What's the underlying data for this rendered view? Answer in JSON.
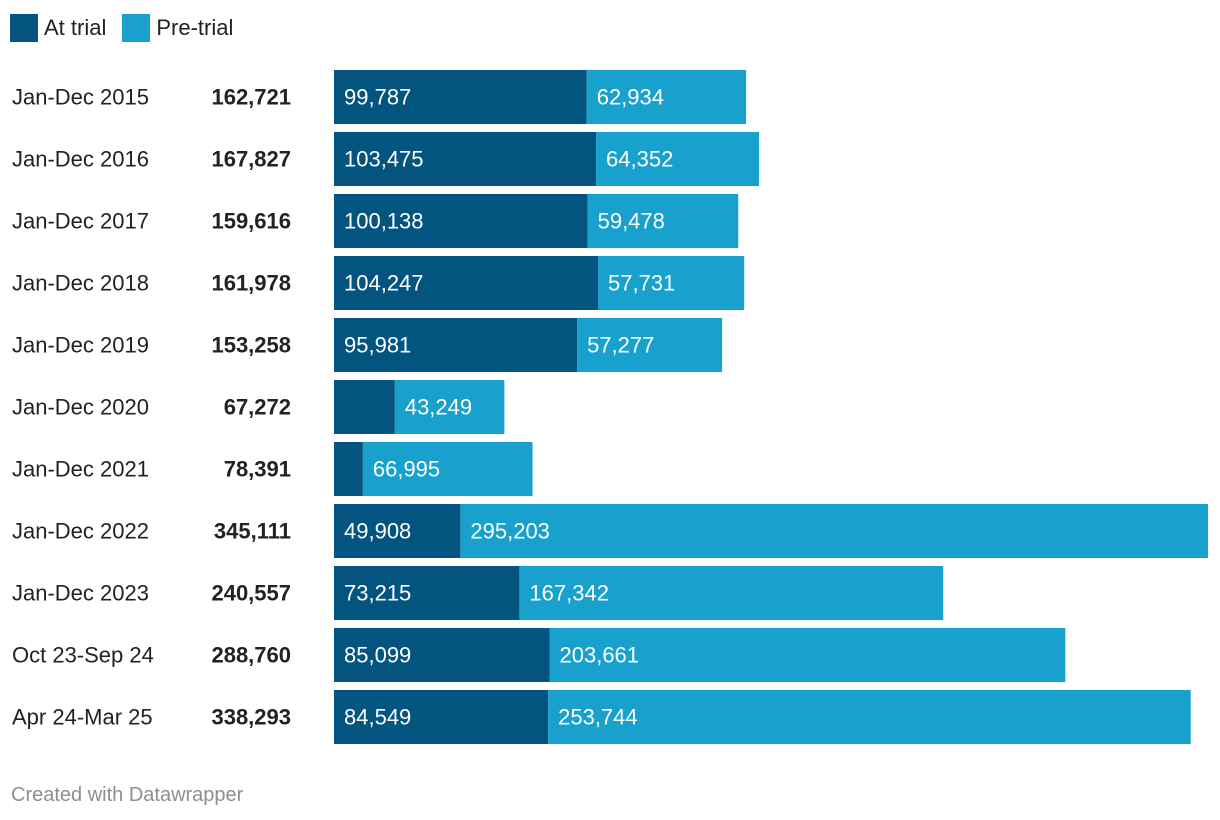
{
  "chart_data": {
    "type": "bar",
    "orientation": "horizontal",
    "stacked": true,
    "categories": [
      "Jan-Dec 2015",
      "Jan-Dec 2016",
      "Jan-Dec 2017",
      "Jan-Dec 2018",
      "Jan-Dec 2019",
      "Jan-Dec 2020",
      "Jan-Dec 2021",
      "Jan-Dec 2022",
      "Jan-Dec 2023",
      "Oct 23-Sep 24",
      "Apr 24-Mar 25"
    ],
    "totals": [
      "162,721",
      "167,827",
      "159,616",
      "161,978",
      "153,258",
      "67,272",
      "78,391",
      "345,111",
      "240,557",
      "288,760",
      "338,293"
    ],
    "series": [
      {
        "name": "At trial",
        "color": "#03547f",
        "values": [
          99787,
          103475,
          100138,
          104247,
          95981,
          24023,
          11396,
          49908,
          73215,
          85099,
          84549
        ],
        "labels": [
          "99,787",
          "103,475",
          "100,138",
          "104,247",
          "95,981",
          "",
          "",
          "49,908",
          "73,215",
          "85,099",
          "84,549"
        ]
      },
      {
        "name": "Pre-trial",
        "color": "#18a1cd",
        "values": [
          62934,
          64352,
          59478,
          57731,
          57277,
          43249,
          66995,
          295203,
          167342,
          203661,
          253744
        ],
        "labels": [
          "62,934",
          "64,352",
          "59,478",
          "57,731",
          "57,277",
          "43,249",
          "66,995",
          "295,203",
          "167,342",
          "203,661",
          "253,744"
        ]
      }
    ],
    "xlim": [
      0,
      345111
    ],
    "legend_position": "top-left",
    "grid": false,
    "title": "",
    "xlabel": "",
    "ylabel": ""
  },
  "footer": {
    "credit": "Created with Datawrapper"
  }
}
